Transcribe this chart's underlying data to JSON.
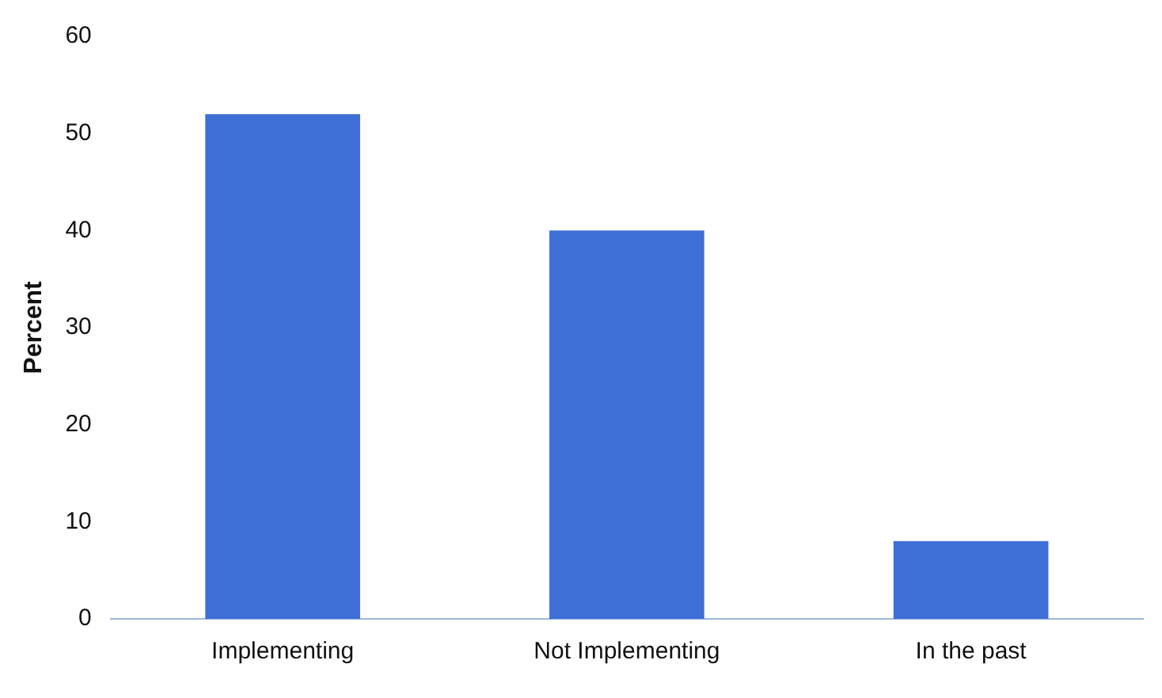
{
  "chart_data": {
    "type": "bar",
    "ylabel": "Percent",
    "categories": [
      "Implementing",
      "Not Implementing",
      "In the past"
    ],
    "values": [
      52,
      40,
      8
    ],
    "color": "#3d6fd6",
    "ylim": [
      0,
      60
    ],
    "yticks": [
      0,
      10,
      20,
      30,
      40,
      50,
      60
    ],
    "grid": false,
    "legend": false
  }
}
